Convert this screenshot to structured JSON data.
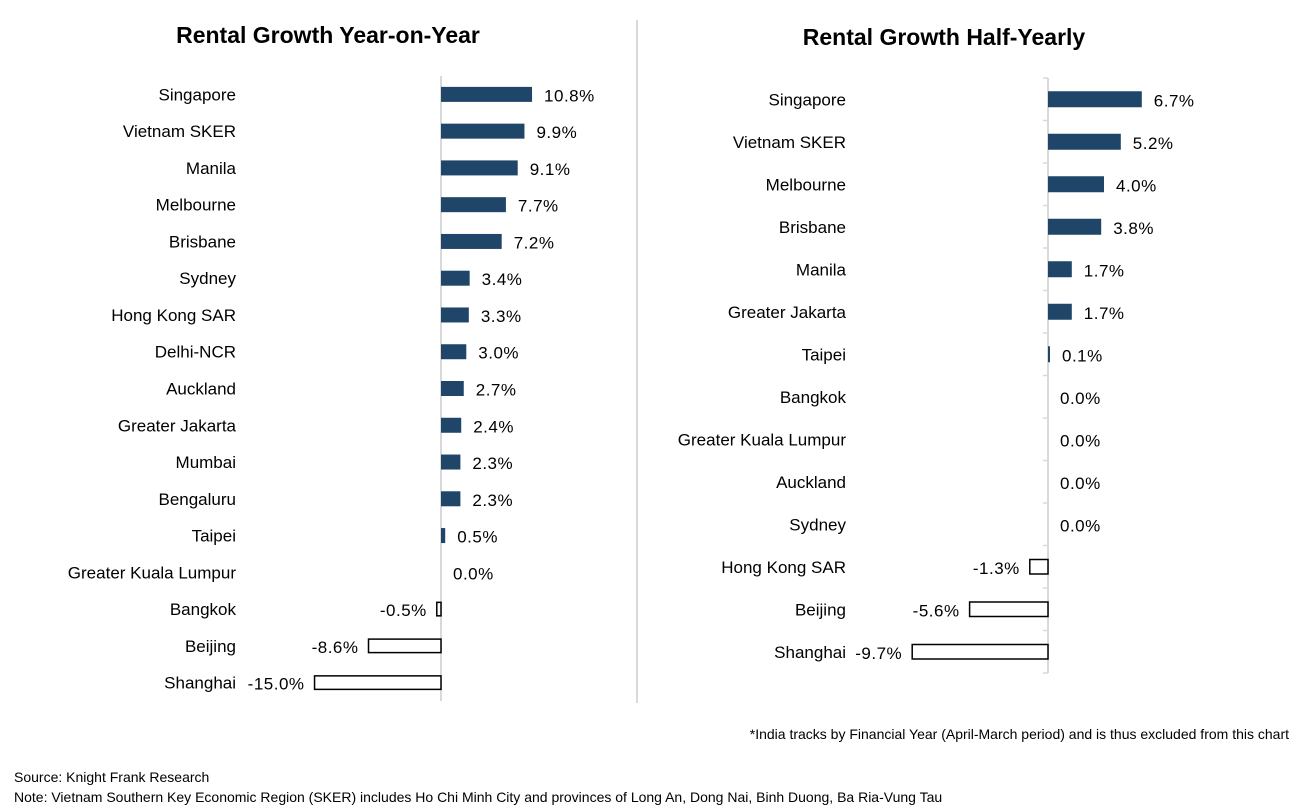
{
  "chart_data": [
    {
      "type": "bar",
      "orientation": "horizontal",
      "title": "Rental Growth Year-on-Year",
      "categories": [
        "Singapore",
        "Vietnam SKER",
        "Manila",
        "Melbourne",
        "Brisbane",
        "Sydney",
        "Hong Kong SAR",
        "Delhi-NCR",
        "Auckland",
        "Greater Jakarta",
        "Mumbai",
        "Bengaluru",
        "Taipei",
        "Greater Kuala Lumpur",
        "Bangkok",
        "Beijing",
        "Shanghai"
      ],
      "values": [
        10.8,
        9.9,
        9.1,
        7.7,
        7.2,
        3.4,
        3.3,
        3.0,
        2.7,
        2.4,
        2.3,
        2.3,
        0.5,
        0.0,
        -0.5,
        -8.6,
        -15.0
      ],
      "value_labels": [
        "10.8%",
        "9.9%",
        "9.1%",
        "7.7%",
        "7.2%",
        "3.4%",
        "3.3%",
        "3.0%",
        "2.7%",
        "2.4%",
        "2.3%",
        "2.3%",
        "0.5%",
        "0.0%",
        "-0.5%",
        "-8.6%",
        "-15.0%"
      ],
      "unit": "%",
      "xlabel": "",
      "ylabel": "",
      "xlim": [
        -15.0,
        10.8
      ],
      "grid": false,
      "axis_ticks": false,
      "colors": {
        "positive": "#1f4569",
        "negative_fill": "#ffffff",
        "negative_stroke": "#000000",
        "axis": "#d9d9d9"
      }
    },
    {
      "type": "bar",
      "orientation": "horizontal",
      "title": "Rental Growth Half-Yearly",
      "categories": [
        "Singapore",
        "Vietnam SKER",
        "Melbourne",
        "Brisbane",
        "Manila",
        "Greater Jakarta",
        "Taipei",
        "Bangkok",
        "Greater Kuala Lumpur",
        "Auckland",
        "Sydney",
        "Hong Kong SAR",
        "Beijing",
        "Shanghai"
      ],
      "values": [
        6.7,
        5.2,
        4.0,
        3.8,
        1.7,
        1.7,
        0.1,
        0.0,
        0.0,
        0.0,
        0.0,
        -1.3,
        -5.6,
        -9.7
      ],
      "value_labels": [
        "6.7%",
        "5.2%",
        "4.0%",
        "3.8%",
        "1.7%",
        "1.7%",
        "0.1%",
        "0.0%",
        "0.0%",
        "0.0%",
        "0.0%",
        "-1.3%",
        "-5.6%",
        "-9.7%"
      ],
      "unit": "%",
      "xlabel": "",
      "ylabel": "",
      "xlim": [
        -9.7,
        6.7
      ],
      "grid": false,
      "axis_ticks": true,
      "colors": {
        "positive": "#1f4569",
        "negative_fill": "#ffffff",
        "negative_stroke": "#000000",
        "axis": "#d9d9d9"
      }
    }
  ],
  "notes": {
    "india": "*India tracks by Financial Year (April-March period) and is thus excluded from this chart",
    "source": "Source: Knight Frank Research",
    "vietnam": "Note: Vietnam Southern Key Economic Region (SKER) includes Ho Chi Minh City and provinces of Long An, Dong Nai, Binh Duong, Ba Ria-Vung Tau"
  }
}
